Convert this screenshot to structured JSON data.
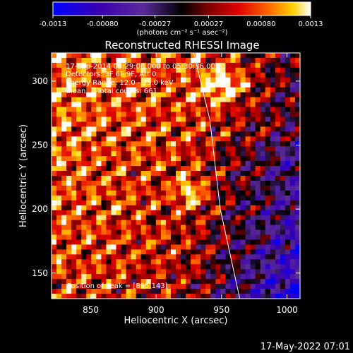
{
  "chart_data": {
    "type": "heatmap",
    "title": "Reconstructed RHESSI Image",
    "xlabel": "Heliocentric X (arcsec)",
    "ylabel": "Heliocentric Y (arcsec)",
    "xlim": [
      820,
      1010
    ],
    "ylim": [
      130,
      322
    ],
    "x_ticks": [
      850,
      900,
      950,
      1000
    ],
    "y_ticks": [
      150,
      200,
      250,
      300
    ],
    "colorbar": {
      "ticks": [
        "-0.0013",
        "-0.00080",
        "-0.00027",
        "0.00027",
        "0.00080",
        "0.0013"
      ],
      "tick_values": [
        -0.0013,
        -0.0008,
        -0.00027,
        0.00027,
        0.0008,
        0.0013
      ],
      "range": [
        -0.0013,
        0.0013
      ],
      "unit_label": "(photons cm⁻² s⁻¹ asec⁻²)",
      "colormap": [
        "#0000ff",
        "#3a00b0",
        "#5a2a9a",
        "#000000",
        "#7a0000",
        "#e00000",
        "#ff6a00",
        "#ffd000",
        "#ffffff"
      ]
    },
    "annotations": [
      "17-Sep-2014 05:29:08.000 to 05:30:36.000",
      "Detectors: 3F 6F 9F, Att 0",
      "Energy Range: 12.0 - 25.0 keV",
      "Clean     Total counts: 661"
    ],
    "peak_label": "Position of Peak = [895,143]",
    "peak_position": [
      895,
      143
    ],
    "limb_line": [
      [
        928,
        325
      ],
      [
        941,
        270
      ],
      [
        949,
        200
      ],
      [
        965,
        125
      ]
    ]
  },
  "footer_date": "17-May-2022 07:01"
}
